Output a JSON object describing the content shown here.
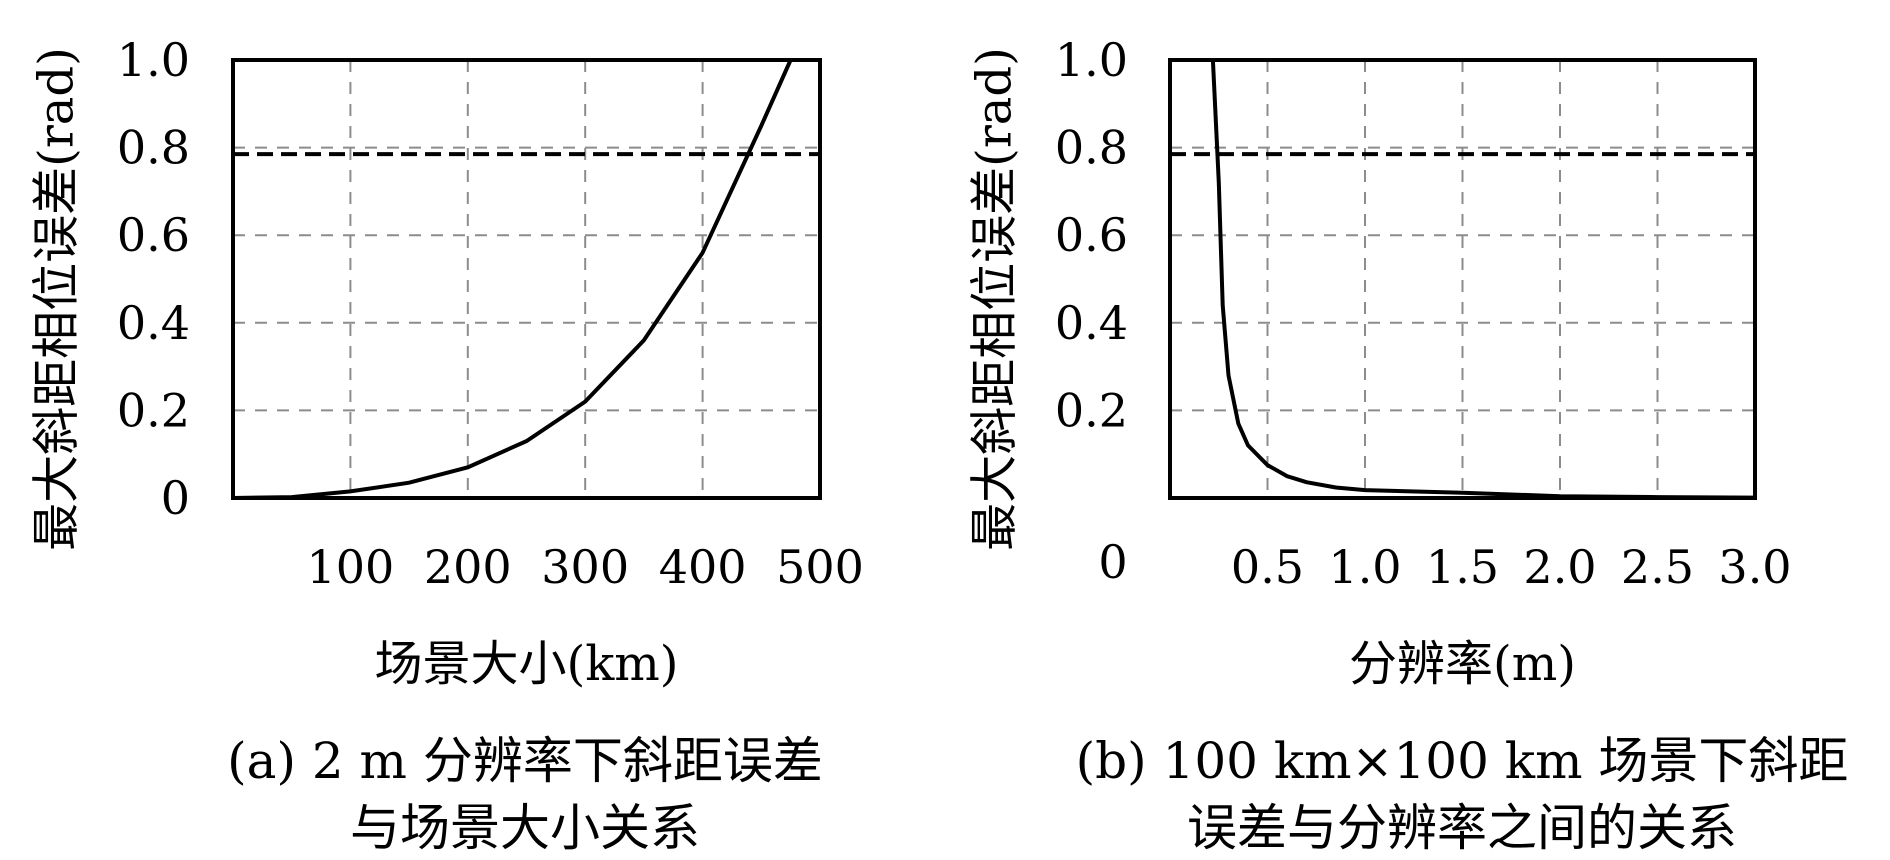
{
  "chart_data": [
    {
      "type": "line",
      "xlabel": "场景大小(km)",
      "ylabel": "最大斜距相位误差(rad)",
      "xlim": [
        0,
        500
      ],
      "ylim": [
        0,
        1.0
      ],
      "x_ticks": [
        100,
        200,
        300,
        400,
        500
      ],
      "x_tick_labels": [
        "100",
        "200",
        "300",
        "400",
        "500"
      ],
      "y_ticks": [
        0,
        0.2,
        0.4,
        0.6,
        0.8,
        1.0
      ],
      "y_tick_labels": [
        "0",
        "0.2",
        "0.4",
        "0.6",
        "0.8",
        "1.0"
      ],
      "grid": true,
      "caption": [
        "(a) 2 m 分辨率下斜距误差",
        "与场景大小关系"
      ],
      "series": [
        {
          "style": "solid",
          "x": [
            0,
            50,
            100,
            150,
            200,
            250,
            300,
            350,
            400,
            450,
            475
          ],
          "y": [
            0.0,
            0.002,
            0.015,
            0.035,
            0.07,
            0.13,
            0.22,
            0.36,
            0.56,
            0.85,
            1.0
          ]
        }
      ],
      "threshold": {
        "y": 0.785,
        "style": "dashed"
      }
    },
    {
      "type": "line",
      "xlabel": "分辨率(m)",
      "ylabel": "最大斜距相位误差(rad)",
      "xlim": [
        0,
        3.0
      ],
      "ylim": [
        0,
        1.0
      ],
      "x_ticks": [
        0.5,
        1.0,
        1.5,
        2.0,
        2.5,
        3.0
      ],
      "x_tick_labels": [
        "0.5",
        "1.0",
        "1.5",
        "2.0",
        "2.5",
        "3.0"
      ],
      "y_ticks": [
        0.2,
        0.4,
        0.6,
        0.8,
        1.0
      ],
      "y_tick_labels": [
        "0.2",
        "0.4",
        "0.6",
        "0.8",
        "1.0"
      ],
      "origin_label": "0",
      "grid": true,
      "caption": [
        "(b) 100 km×100 km 场景下斜距",
        "误差与分辨率之间的关系"
      ],
      "series": [
        {
          "style": "solid",
          "x": [
            0.22,
            0.25,
            0.27,
            0.3,
            0.35,
            0.4,
            0.5,
            0.6,
            0.7,
            0.85,
            1.0,
            1.5,
            2.0,
            2.5,
            3.0
          ],
          "y": [
            1.0,
            0.72,
            0.44,
            0.28,
            0.17,
            0.12,
            0.075,
            0.05,
            0.036,
            0.024,
            0.018,
            0.012,
            0.004,
            0.002,
            0.001
          ]
        }
      ],
      "threshold": {
        "y": 0.785,
        "style": "dashed"
      }
    }
  ]
}
